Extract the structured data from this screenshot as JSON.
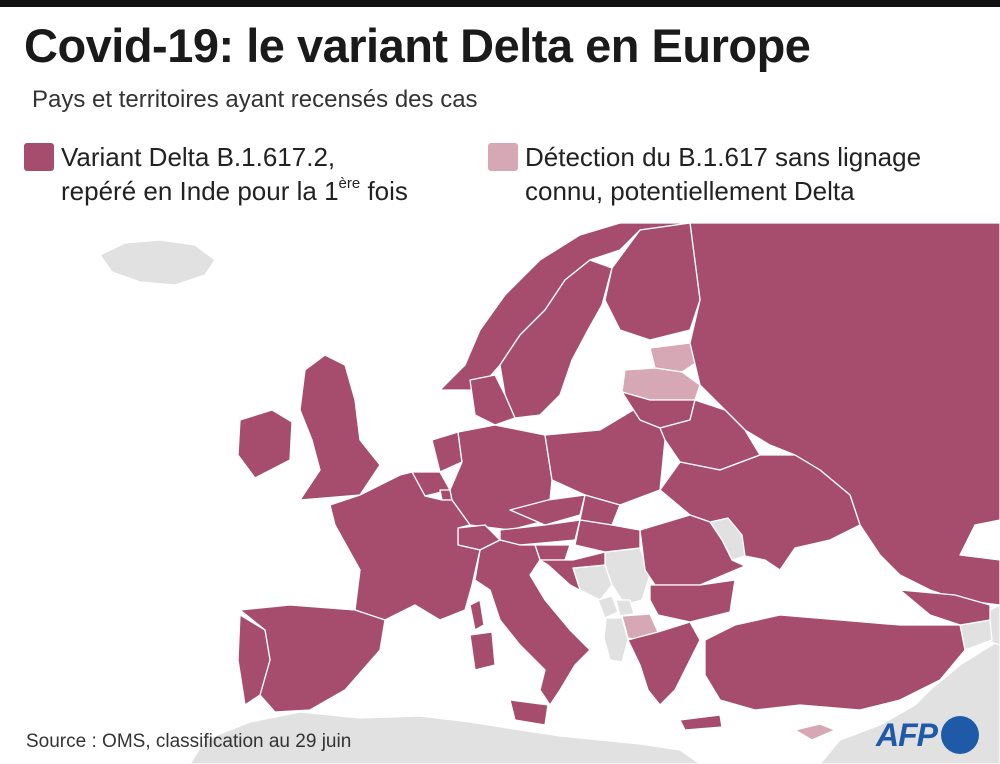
{
  "title": "Covid-19: le variant Delta en Europe",
  "subtitle": "Pays et territoires ayant recensés des cas",
  "legend": [
    {
      "line1": "Variant Delta B.1.617.2,",
      "line2_pre": "repéré en Inde pour la 1",
      "line2_sup": "ère",
      "line2_post": " fois",
      "color": "#a64d6e"
    },
    {
      "line1": "Détection du B.1.617 sans lignage",
      "line2": "connu, potentiellement Delta",
      "color": "#d6a8b5"
    }
  ],
  "source": "Source : OMS, classification au 29 juin",
  "logo": {
    "text": "AFP",
    "text_color": "#1f5aa8",
    "dot_color": "#1f5aa8"
  },
  "colors": {
    "delta": "#a64d6e",
    "potential": "#d6a8b5",
    "other": "#e1e1e1",
    "sea": "#ffffff",
    "border": "#ffffff"
  },
  "regions": [
    {
      "name": "Islande",
      "status": "other"
    },
    {
      "name": "Royaume-Uni",
      "status": "delta"
    },
    {
      "name": "Irlande",
      "status": "delta"
    },
    {
      "name": "Norvège",
      "status": "delta"
    },
    {
      "name": "Suède",
      "status": "delta"
    },
    {
      "name": "Finlande",
      "status": "delta"
    },
    {
      "name": "Danemark",
      "status": "delta"
    },
    {
      "name": "Estonie",
      "status": "potential"
    },
    {
      "name": "Lettonie",
      "status": "potential"
    },
    {
      "name": "Lituanie",
      "status": "delta"
    },
    {
      "name": "Russie",
      "status": "delta"
    },
    {
      "name": "Biélorussie",
      "status": "delta"
    },
    {
      "name": "Pologne",
      "status": "delta"
    },
    {
      "name": "Allemagne",
      "status": "delta"
    },
    {
      "name": "Pays-Bas",
      "status": "delta"
    },
    {
      "name": "Belgique",
      "status": "delta"
    },
    {
      "name": "Luxembourg",
      "status": "delta"
    },
    {
      "name": "France",
      "status": "delta"
    },
    {
      "name": "Espagne",
      "status": "delta"
    },
    {
      "name": "Portugal",
      "status": "delta"
    },
    {
      "name": "Suisse",
      "status": "delta"
    },
    {
      "name": "Autriche",
      "status": "delta"
    },
    {
      "name": "Tchéquie",
      "status": "delta"
    },
    {
      "name": "Slovaquie",
      "status": "delta"
    },
    {
      "name": "Hongrie",
      "status": "delta"
    },
    {
      "name": "Slovénie",
      "status": "delta"
    },
    {
      "name": "Croatie",
      "status": "delta"
    },
    {
      "name": "Bosnie-Herzégovine",
      "status": "other"
    },
    {
      "name": "Serbie",
      "status": "other"
    },
    {
      "name": "Monténégro",
      "status": "other"
    },
    {
      "name": "Kosovo",
      "status": "other"
    },
    {
      "name": "Albanie",
      "status": "other"
    },
    {
      "name": "Macédoine du Nord",
      "status": "potential"
    },
    {
      "name": "Roumanie",
      "status": "delta"
    },
    {
      "name": "Moldavie",
      "status": "other"
    },
    {
      "name": "Ukraine",
      "status": "delta"
    },
    {
      "name": "Bulgarie",
      "status": "delta"
    },
    {
      "name": "Grèce",
      "status": "delta"
    },
    {
      "name": "Turquie",
      "status": "delta"
    },
    {
      "name": "Italie",
      "status": "delta"
    },
    {
      "name": "Sardaigne",
      "status": "delta"
    },
    {
      "name": "Corse",
      "status": "delta"
    },
    {
      "name": "Sicile",
      "status": "delta"
    },
    {
      "name": "Crète",
      "status": "delta"
    },
    {
      "name": "Chypre",
      "status": "potential"
    },
    {
      "name": "Géorgie",
      "status": "delta"
    },
    {
      "name": "Arménie",
      "status": "other"
    },
    {
      "name": "Azerbaïdjan",
      "status": "other"
    },
    {
      "name": "Afrique du Nord",
      "status": "other"
    },
    {
      "name": "Moyen-Orient",
      "status": "other"
    }
  ]
}
